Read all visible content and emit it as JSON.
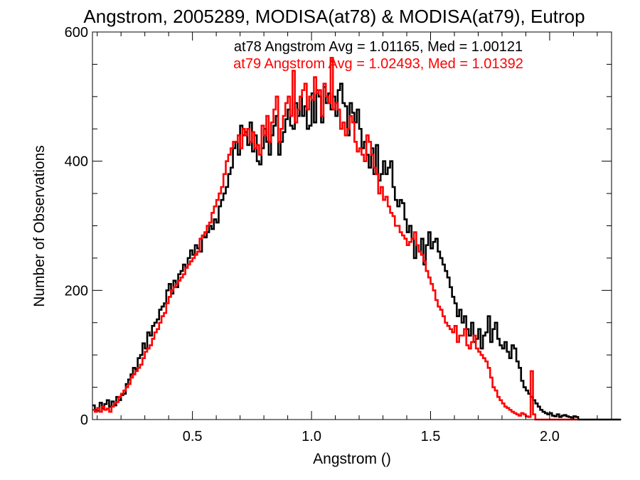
{
  "chart_data": {
    "type": "line",
    "title": "Angstrom, 2005289, MODISA(at78) & MODISA(at79), Eutrop",
    "xlabel": "Angstrom ()",
    "ylabel": "Number of Observations",
    "xlim": [
      0.08,
      2.26
    ],
    "ylim": [
      0,
      600
    ],
    "x_ticks": [
      0.5,
      1.0,
      1.5,
      2.0
    ],
    "x_tick_labels": [
      "0.5",
      "1.0",
      "1.5",
      "2.0"
    ],
    "y_ticks": [
      0,
      200,
      400,
      600
    ],
    "y_tick_labels": [
      "0",
      "200",
      "400",
      "600"
    ],
    "grid": false,
    "bin_width": 0.01,
    "x_start": 0.08,
    "annotations": [
      {
        "text": "at78 Angstrom Avg = 1.01165, Med = 1.00121",
        "color": "#000000"
      },
      {
        "text": "at79 Angstrom Avg = 1.02493, Med = 1.01392",
        "color": "#ff0000"
      }
    ],
    "series": [
      {
        "name": "at78",
        "color": "#000000",
        "values": [
          22,
          15,
          14,
          26,
          17,
          24,
          30,
          20,
          28,
          22,
          35,
          30,
          38,
          40,
          55,
          62,
          70,
          80,
          78,
          95,
          100,
          118,
          110,
          135,
          130,
          145,
          150,
          155,
          170,
          175,
          180,
          200,
          210,
          195,
          215,
          205,
          225,
          230,
          240,
          235,
          250,
          262,
          255,
          270,
          265,
          260,
          285,
          282,
          290,
          300,
          295,
          310,
          305,
          330,
          340,
          350,
          360,
          380,
          390,
          420,
          430,
          410,
          455,
          440,
          445,
          425,
          460,
          415,
          440,
          400,
          395,
          420,
          450,
          430,
          410,
          440,
          455,
          470,
          410,
          430,
          445,
          465,
          480,
          455,
          450,
          490,
          470,
          500,
          470,
          485,
          450,
          455,
          505,
          460,
          510,
          500,
          460,
          515,
          490,
          505,
          480,
          500,
          470,
          510,
          520,
          490,
          485,
          440,
          490,
          475,
          460,
          480,
          450,
          420,
          430,
          410,
          390,
          420,
          380,
          425,
          370,
          380,
          400,
          380,
          390,
          400,
          360,
          340,
          330,
          340,
          335,
          310,
          290,
          300,
          280,
          250,
          270,
          260,
          280,
          240,
          270,
          290,
          265,
          275,
          280,
          260,
          250,
          240,
          230,
          220,
          205,
          190,
          180,
          160,
          170,
          150,
          160,
          140,
          130,
          150,
          120,
          125,
          140,
          110,
          130,
          135,
          160,
          120,
          140,
          150,
          125,
          115,
          110,
          120,
          105,
          95,
          115,
          110,
          90,
          80,
          60,
          50,
          45,
          40,
          35,
          30,
          25,
          20,
          15,
          12,
          10,
          8,
          10,
          6,
          5,
          8,
          4,
          6,
          7,
          5,
          4,
          3,
          5,
          4,
          0,
          0,
          0,
          0,
          0,
          0,
          0,
          0,
          0,
          0,
          0,
          0,
          0,
          0,
          0,
          0,
          0,
          0
        ]
      },
      {
        "name": "at79",
        "color": "#ff0000",
        "values": [
          15,
          12,
          18,
          12,
          20,
          15,
          17,
          12,
          20,
          25,
          27,
          35,
          40,
          45,
          50,
          55,
          65,
          70,
          75,
          80,
          85,
          95,
          105,
          110,
          115,
          125,
          135,
          140,
          150,
          160,
          165,
          180,
          190,
          200,
          205,
          210,
          215,
          220,
          225,
          235,
          240,
          245,
          250,
          255,
          260,
          280,
          285,
          290,
          300,
          305,
          320,
          330,
          340,
          350,
          360,
          380,
          400,
          410,
          420,
          430,
          430,
          440,
          420,
          450,
          440,
          450,
          430,
          445,
          420,
          425,
          410,
          455,
          440,
          470,
          430,
          460,
          480,
          500,
          430,
          450,
          470,
          490,
          500,
          470,
          540,
          460,
          480,
          500,
          510,
          520,
          480,
          500,
          495,
          530,
          505,
          510,
          470,
          520,
          500,
          490,
          560,
          480,
          490,
          480,
          450,
          460,
          440,
          450,
          470,
          460,
          430,
          415,
          420,
          410,
          400,
          440,
          430,
          410,
          390,
          380,
          350,
          360,
          340,
          345,
          330,
          320,
          315,
          300,
          300,
          290,
          285,
          280,
          270,
          275,
          280,
          290,
          270,
          260,
          255,
          245,
          230,
          220,
          210,
          200,
          185,
          175,
          170,
          160,
          150,
          145,
          140,
          135,
          145,
          120,
          130,
          130,
          140,
          115,
          110,
          120,
          130,
          110,
          105,
          100,
          95,
          90,
          80,
          65,
          50,
          45,
          35,
          30,
          25,
          20,
          18,
          15,
          12,
          10,
          8,
          6,
          10,
          8,
          5,
          4,
          75,
          8,
          0,
          0,
          0,
          0,
          0,
          0,
          0,
          0,
          0,
          0,
          0,
          0,
          0,
          0,
          0,
          0,
          0,
          0
        ]
      }
    ]
  }
}
